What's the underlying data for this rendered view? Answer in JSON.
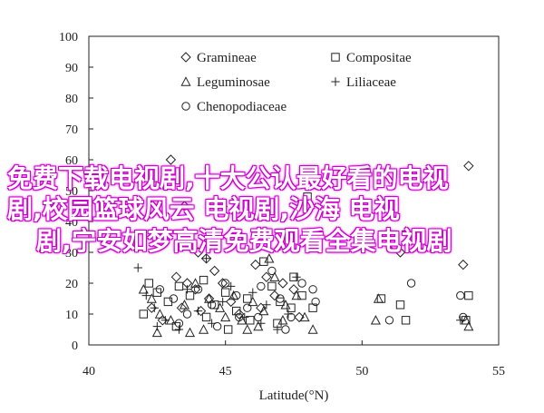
{
  "chart_data": {
    "type": "scatter",
    "xlabel": "Latitude(°N)",
    "ylabel": "",
    "xlim": [
      40,
      55
    ],
    "ylim": [
      0,
      100
    ],
    "xticks": [
      "40",
      "45",
      "50",
      "55"
    ],
    "yticks": [
      "0",
      "10",
      "20",
      "30",
      "40",
      "50",
      "60",
      "70",
      "80",
      "90",
      "100"
    ],
    "legend_position": "top-center",
    "series": [
      {
        "name": "Gramineae",
        "marker": "diamond",
        "points": [
          [
            43.0,
            60
          ],
          [
            43.5,
            45
          ],
          [
            44.0,
            30
          ],
          [
            44.3,
            28
          ],
          [
            44.6,
            24
          ],
          [
            43.2,
            22
          ],
          [
            43.6,
            20
          ],
          [
            44.9,
            20
          ],
          [
            43.9,
            18
          ],
          [
            44.4,
            15
          ],
          [
            45.2,
            14
          ],
          [
            43.4,
            12
          ],
          [
            44.1,
            11
          ],
          [
            45.5,
            10
          ],
          [
            46.1,
            26
          ],
          [
            46.5,
            22
          ],
          [
            47.1,
            20
          ],
          [
            46.8,
            16
          ],
          [
            47.5,
            18
          ],
          [
            46.3,
            12
          ],
          [
            47.7,
            9
          ],
          [
            51.2,
            32
          ],
          [
            51.4,
            30
          ],
          [
            53.9,
            58
          ],
          [
            53.7,
            26
          ],
          [
            42.3,
            12
          ],
          [
            42.7,
            8
          ]
        ]
      },
      {
        "name": "Compositae",
        "marker": "square",
        "points": [
          [
            42.2,
            20
          ],
          [
            42.5,
            17
          ],
          [
            42.9,
            14
          ],
          [
            43.3,
            19
          ],
          [
            43.7,
            16
          ],
          [
            44.2,
            21
          ],
          [
            44.6,
            13
          ],
          [
            45.0,
            17
          ],
          [
            45.4,
            11
          ],
          [
            45.8,
            15
          ],
          [
            46.4,
            27
          ],
          [
            46.7,
            19
          ],
          [
            47.0,
            14
          ],
          [
            47.4,
            12
          ],
          [
            47.8,
            16
          ],
          [
            48.2,
            12
          ],
          [
            43.2,
            6
          ],
          [
            44.3,
            9
          ],
          [
            45.1,
            5
          ],
          [
            45.9,
            8
          ],
          [
            46.9,
            7
          ],
          [
            50.7,
            15
          ],
          [
            51.4,
            13
          ],
          [
            51.6,
            8
          ],
          [
            53.9,
            16
          ],
          [
            53.8,
            8
          ],
          [
            42.0,
            10
          ],
          [
            47.5,
            22
          ],
          [
            48.0,
            48
          ]
        ]
      },
      {
        "name": "Leguminosae",
        "marker": "triangle",
        "points": [
          [
            42.0,
            18
          ],
          [
            42.3,
            15
          ],
          [
            42.6,
            10
          ],
          [
            42.5,
            4
          ],
          [
            43.0,
            8
          ],
          [
            43.5,
            13
          ],
          [
            43.9,
            20
          ],
          [
            44.2,
            5
          ],
          [
            44.4,
            15
          ],
          [
            44.8,
            12
          ],
          [
            45.0,
            9
          ],
          [
            45.3,
            16
          ],
          [
            45.6,
            8
          ],
          [
            46.0,
            14
          ],
          [
            46.2,
            6
          ],
          [
            46.4,
            11
          ],
          [
            46.6,
            28
          ],
          [
            46.8,
            22
          ],
          [
            47.1,
            8
          ],
          [
            47.2,
            13
          ],
          [
            47.6,
            16
          ],
          [
            47.9,
            9
          ],
          [
            48.2,
            5
          ],
          [
            43.7,
            4
          ],
          [
            45.8,
            5
          ],
          [
            50.6,
            15
          ],
          [
            50.5,
            8
          ],
          [
            53.8,
            8
          ],
          [
            53.9,
            6
          ],
          [
            44.9,
            46
          ]
        ]
      },
      {
        "name": "Liliaceae",
        "marker": "plus",
        "points": [
          [
            41.8,
            25
          ],
          [
            42.1,
            16
          ],
          [
            42.4,
            12
          ],
          [
            42.8,
            8
          ],
          [
            43.3,
            5
          ],
          [
            43.6,
            18
          ],
          [
            44.0,
            11
          ],
          [
            44.5,
            7
          ],
          [
            44.9,
            14
          ],
          [
            45.2,
            19
          ],
          [
            45.7,
            9
          ],
          [
            46.0,
            17
          ],
          [
            46.3,
            7
          ],
          [
            46.5,
            13
          ],
          [
            46.9,
            5
          ],
          [
            47.3,
            10
          ],
          [
            47.6,
            22
          ],
          [
            47.0,
            32
          ],
          [
            44.3,
            28
          ],
          [
            42.5,
            6
          ],
          [
            45.6,
            35
          ],
          [
            51.6,
            37
          ],
          [
            53.6,
            8
          ],
          [
            48.1,
            34
          ]
        ]
      },
      {
        "name": "Chenopodiaceae",
        "marker": "circle",
        "points": [
          [
            42.6,
            18
          ],
          [
            43.1,
            15
          ],
          [
            43.6,
            10
          ],
          [
            44.0,
            18
          ],
          [
            44.5,
            13
          ],
          [
            45.0,
            20
          ],
          [
            45.4,
            16
          ],
          [
            45.8,
            12
          ],
          [
            46.3,
            19
          ],
          [
            46.7,
            24
          ],
          [
            47.0,
            15
          ],
          [
            47.4,
            9
          ],
          [
            47.8,
            20
          ],
          [
            48.2,
            18
          ],
          [
            48.3,
            14
          ],
          [
            44.7,
            6
          ],
          [
            46.2,
            9
          ],
          [
            47.2,
            5
          ],
          [
            51.0,
            8
          ],
          [
            51.8,
            20
          ],
          [
            53.6,
            16
          ],
          [
            53.7,
            9
          ],
          [
            43.3,
            7
          ],
          [
            45.5,
            9
          ]
        ]
      }
    ]
  },
  "overlay": {
    "line1": "免费下载电视剧,十大公认最好看的电视",
    "line2": "剧,校园篮球风云 电视剧,沙海 电视",
    "line3": "剧,宁安如梦高清免费观看全集电视剧"
  }
}
